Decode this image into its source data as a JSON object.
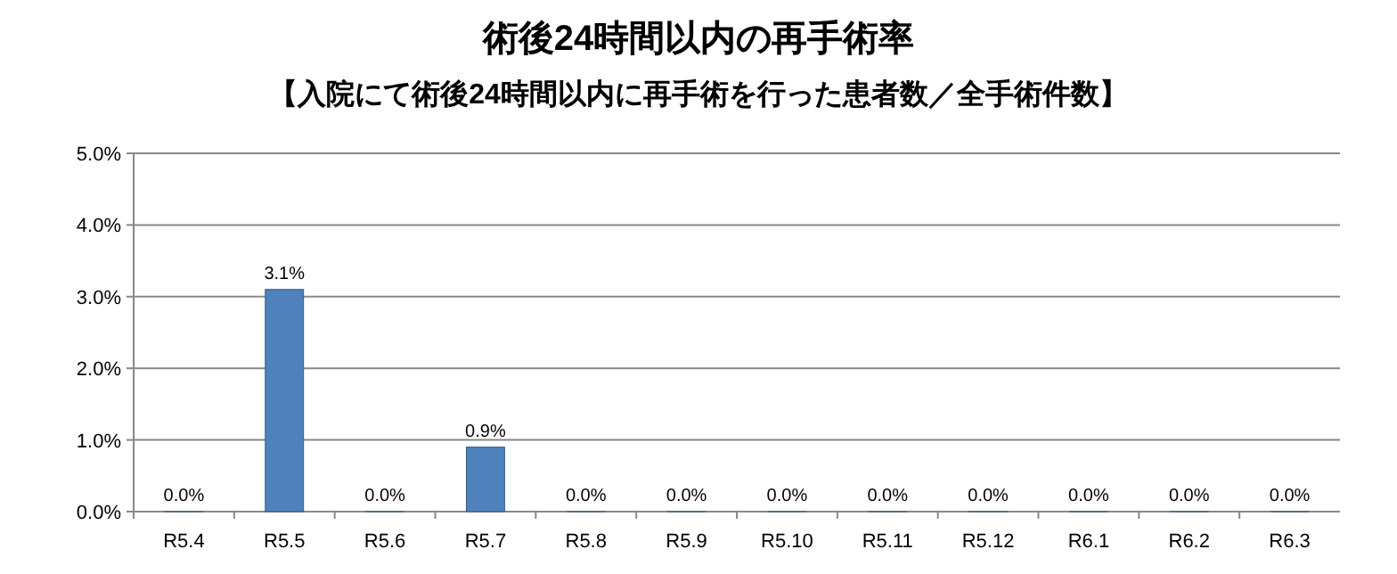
{
  "chart_data": {
    "type": "bar",
    "title": "術後24時間以内の再手術率",
    "subtitle": "【入院にて術後24時間以内に再手術を行った患者数／全手術件数】",
    "categories": [
      "R5.4",
      "R5.5",
      "R5.6",
      "R5.7",
      "R5.8",
      "R5.9",
      "R5.10",
      "R5.11",
      "R5.12",
      "R6.1",
      "R6.2",
      "R6.3"
    ],
    "values": [
      0,
      3.1,
      0,
      0.9,
      0,
      0,
      0,
      0,
      0,
      0,
      0,
      0
    ],
    "value_labels": [
      "0.0%",
      "3.1%",
      "0.0%",
      "0.9%",
      "0.0%",
      "0.0%",
      "0.0%",
      "0.0%",
      "0.0%",
      "0.0%",
      "0.0%",
      "0.0%"
    ],
    "color": "#4f81bd",
    "ylim": [
      0,
      5
    ],
    "yticks": [
      {
        "value": 0,
        "label": "0.0%"
      },
      {
        "value": 1,
        "label": "1.0%"
      },
      {
        "value": 2,
        "label": "2.0%"
      },
      {
        "value": 3,
        "label": "3.0%"
      },
      {
        "value": 4,
        "label": "4.0%"
      },
      {
        "value": 5,
        "label": "5.0%"
      }
    ],
    "grid": "y"
  }
}
